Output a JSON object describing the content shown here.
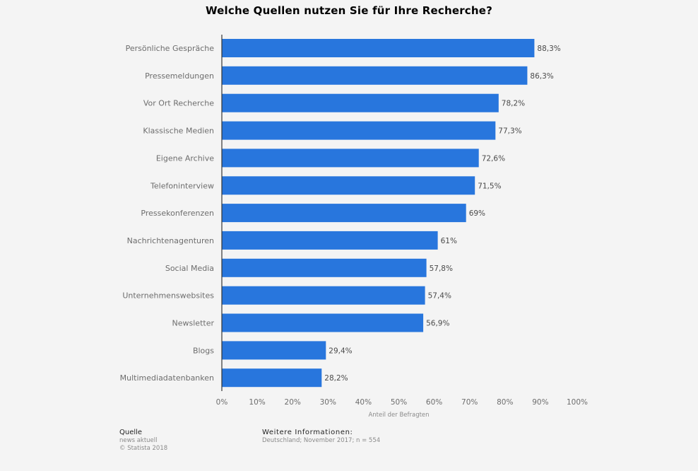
{
  "chart_data": {
    "type": "bar",
    "orientation": "horizontal",
    "title": "Welche Quellen nutzen Sie für Ihre Recherche?",
    "xlabel": "Anteil der Befragten",
    "ylabel": "",
    "xlim": [
      0,
      100
    ],
    "grid": false,
    "bar_color": "#2876dd",
    "categories": [
      "Persönliche Gespräche",
      "Pressemeldungen",
      "Vor Ort Recherche",
      "Klassische Medien",
      "Eigene Archive",
      "Telefoninterview",
      "Pressekonferenzen",
      "Nachrichtenagenturen",
      "Social Media",
      "Unternehmenswebsites",
      "Newsletter",
      "Blogs",
      "Multimediadatenbanken"
    ],
    "values": [
      88.3,
      86.3,
      78.2,
      77.3,
      72.6,
      71.5,
      69,
      61,
      57.8,
      57.4,
      56.9,
      29.4,
      28.2
    ],
    "value_labels": [
      "88,3%",
      "86,3%",
      "78,2%",
      "77,3%",
      "72,6%",
      "71,5%",
      "69%",
      "61%",
      "57,8%",
      "57,4%",
      "56,9%",
      "29,4%",
      "28,2%"
    ],
    "x_ticks": [
      0,
      10,
      20,
      30,
      40,
      50,
      60,
      70,
      80,
      90,
      100
    ],
    "x_tick_labels": [
      "0%",
      "10%",
      "20%",
      "30%",
      "40%",
      "50%",
      "60%",
      "70%",
      "80%",
      "90%",
      "100%"
    ]
  },
  "footer": {
    "source_heading": "Quelle",
    "source_lines": [
      "news aktuell",
      "© Statista 2018"
    ],
    "info_heading": "Weitere Informationen:",
    "info_lines": [
      "Deutschland; November 2017; n = 554"
    ]
  }
}
